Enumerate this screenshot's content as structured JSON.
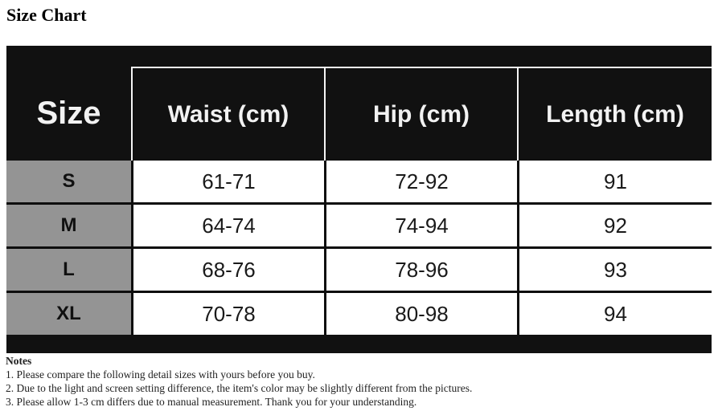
{
  "page": {
    "title": "Size Chart"
  },
  "chart_data": {
    "type": "table",
    "title": "Size Chart",
    "columns": [
      "Size",
      "Waist (cm)",
      "Hip (cm)",
      "Length (cm)"
    ],
    "rows": [
      [
        "S",
        "61-71",
        "72-92",
        "91"
      ],
      [
        "M",
        "64-74",
        "74-94",
        "92"
      ],
      [
        "L",
        "68-76",
        "78-96",
        "93"
      ],
      [
        "XL",
        "70-78",
        "80-98",
        "94"
      ]
    ]
  },
  "notes": {
    "heading": "Notes",
    "items": [
      "1. Please compare the following detail sizes with yours before you buy.",
      "2. Due to the light and screen setting difference, the item's color may be slightly different from the pictures.",
      "3. Please allow 1-3 cm differs due to manual measurement. Thank you for your understanding."
    ]
  },
  "colors": {
    "header_bg": "#111111",
    "header_text": "#f2f2f2",
    "header_divider": "#f5f5f5",
    "size_cell_bg": "#949494",
    "data_cell_bg": "#ffffff",
    "grid_line": "#0d0d0d",
    "text_dark": "#1a1a1a"
  }
}
